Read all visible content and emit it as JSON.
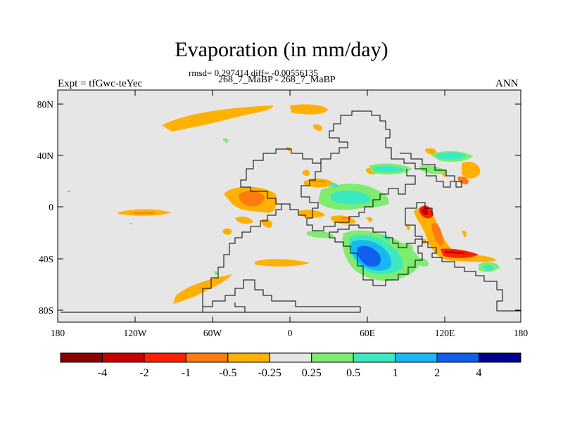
{
  "title": "Evaporation (in mm/day)",
  "stats": "rmsd= 0.297414 diff= -0.00556135",
  "subtitle": "268_7_MaBP - 268_7_MaBP",
  "left_label": "Expt = tfGwc-teYec",
  "right_label": "ANN",
  "x_ticks": [
    "180",
    "120W",
    "60W",
    "0",
    "60E",
    "120E",
    "180"
  ],
  "y_ticks": [
    "80N",
    "40N",
    "0",
    "40S",
    "80S"
  ],
  "colorbar": {
    "colors": [
      "#8b0000",
      "#c80000",
      "#ff2000",
      "#ff7a10",
      "#ffb000",
      "#e6e6e6",
      "#7eec6e",
      "#3ce8c0",
      "#17b8f4",
      "#1060f0",
      "#00008e"
    ],
    "labels": [
      "-4",
      "-2",
      "-1",
      "-0.5",
      "-0.25",
      "0.25",
      "0.5",
      "1",
      "2",
      "4"
    ]
  }
}
